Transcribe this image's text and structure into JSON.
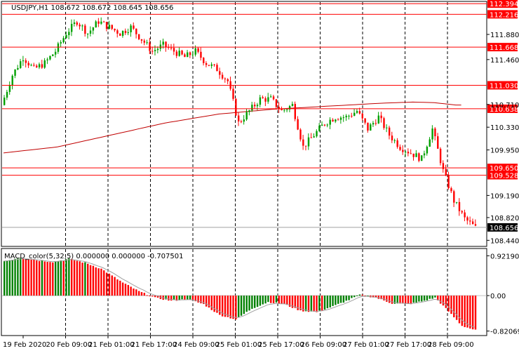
{
  "chart_data": [
    {
      "type": "candlestick",
      "title": "USDJPY,H1  108.672 108.672 108.645 108.656",
      "ylim": [
        108.35,
        112.42
      ],
      "y_ticks": [
        112.394,
        112.216,
        111.88,
        111.668,
        111.46,
        111.03,
        110.71,
        110.638,
        110.33,
        109.95,
        109.65,
        109.528,
        109.19,
        108.82,
        108.656,
        108.44
      ],
      "x_ticks": [
        "19 Feb 2020",
        "20 Feb 09:00",
        "21 Feb 01:00",
        "21 Feb 17:00",
        "24 Feb 09:00",
        "25 Feb 01:00",
        "25 Feb 17:00",
        "26 Feb 09:00",
        "27 Feb 01:00",
        "27 Feb 17:00",
        "28 Feb 09:00"
      ],
      "horizontal_levels": [
        {
          "value": 112.394,
          "label": "112.394",
          "color": "#ff0000"
        },
        {
          "value": 112.216,
          "label": "112.216",
          "color": "#ff0000"
        },
        {
          "value": 111.668,
          "label": "111.668",
          "color": "#ff0000"
        },
        {
          "value": 111.03,
          "label": "111.030",
          "color": "#ff0000"
        },
        {
          "value": 110.638,
          "label": "110.638",
          "color": "#ff0000"
        },
        {
          "value": 109.65,
          "label": "109.650",
          "color": "#ff0000"
        },
        {
          "value": 109.528,
          "label": "109.528",
          "color": "#ff0000"
        }
      ],
      "current_price": {
        "value": 108.656,
        "label": "108.656"
      },
      "close_path": [
        [
          0,
          110.7
        ],
        [
          4,
          111.2
        ],
        [
          8,
          111.5
        ],
        [
          12,
          111.3
        ],
        [
          16,
          111.4
        ],
        [
          20,
          111.6
        ],
        [
          24,
          111.9
        ],
        [
          28,
          112.1
        ],
        [
          32,
          111.9
        ],
        [
          36,
          112.1
        ],
        [
          40,
          112.0
        ],
        [
          44,
          111.9
        ],
        [
          48,
          112.0
        ],
        [
          52,
          111.8
        ],
        [
          56,
          111.6
        ],
        [
          60,
          111.7
        ],
        [
          64,
          111.6
        ],
        [
          68,
          111.5
        ],
        [
          72,
          111.6
        ],
        [
          76,
          111.4
        ],
        [
          80,
          111.3
        ],
        [
          84,
          111.1
        ],
        [
          88,
          110.4
        ],
        [
          92,
          110.6
        ],
        [
          96,
          110.8
        ],
        [
          100,
          110.8
        ],
        [
          104,
          110.6
        ],
        [
          108,
          110.7
        ],
        [
          112,
          110.0
        ],
        [
          116,
          110.2
        ],
        [
          120,
          110.4
        ],
        [
          124,
          110.5
        ],
        [
          128,
          110.5
        ],
        [
          132,
          110.6
        ],
        [
          136,
          110.3
        ],
        [
          140,
          110.5
        ],
        [
          144,
          110.2
        ],
        [
          148,
          110.0
        ],
        [
          152,
          109.9
        ],
        [
          156,
          109.8
        ],
        [
          160,
          110.3
        ],
        [
          164,
          109.6
        ],
        [
          168,
          109.1
        ],
        [
          172,
          108.8
        ],
        [
          176,
          108.65
        ]
      ],
      "ma_path": [
        [
          0,
          109.9
        ],
        [
          20,
          110.0
        ],
        [
          40,
          110.2
        ],
        [
          60,
          110.4
        ],
        [
          80,
          110.55
        ],
        [
          100,
          110.63
        ],
        [
          120,
          110.68
        ],
        [
          140,
          110.73
        ],
        [
          152,
          110.75
        ],
        [
          160,
          110.74
        ],
        [
          168,
          110.7
        ]
      ],
      "colors": {
        "bull": "#00a000",
        "bear": "#ff0000",
        "level": "#ff0000",
        "ma": "#c00000",
        "price_tag": "#000000"
      }
    },
    {
      "type": "histogram",
      "title": "MACD_color(5,32,5) 0.000000 0.000000 -0.707501",
      "ylim": [
        -0.86,
        0.96
      ],
      "y_ticks": [
        0.921907,
        0.0,
        -0.820696
      ],
      "y_tick_labels": [
        "0.921907",
        "0.00",
        "-0.820696"
      ],
      "key_path": [
        [
          0,
          0.8
        ],
        [
          6,
          0.88
        ],
        [
          12,
          0.82
        ],
        [
          18,
          0.78
        ],
        [
          24,
          0.85
        ],
        [
          30,
          0.76
        ],
        [
          36,
          0.62
        ],
        [
          44,
          0.3
        ],
        [
          50,
          0.1
        ],
        [
          56,
          -0.05
        ],
        [
          62,
          -0.12
        ],
        [
          68,
          -0.08
        ],
        [
          74,
          -0.2
        ],
        [
          80,
          -0.45
        ],
        [
          86,
          -0.55
        ],
        [
          92,
          -0.3
        ],
        [
          98,
          -0.15
        ],
        [
          104,
          -0.2
        ],
        [
          110,
          -0.35
        ],
        [
          116,
          -0.38
        ],
        [
          122,
          -0.25
        ],
        [
          128,
          -0.1
        ],
        [
          132,
          0.02
        ],
        [
          138,
          -0.05
        ],
        [
          144,
          -0.18
        ],
        [
          150,
          -0.2
        ],
        [
          156,
          -0.12
        ],
        [
          160,
          -0.05
        ],
        [
          164,
          -0.3
        ],
        [
          170,
          -0.7
        ],
        [
          176,
          -0.82
        ]
      ],
      "colors": {
        "up": "#008000",
        "down": "#ff0000",
        "signal": "#a0a0a0",
        "zero": "#c0c0c0"
      }
    }
  ]
}
